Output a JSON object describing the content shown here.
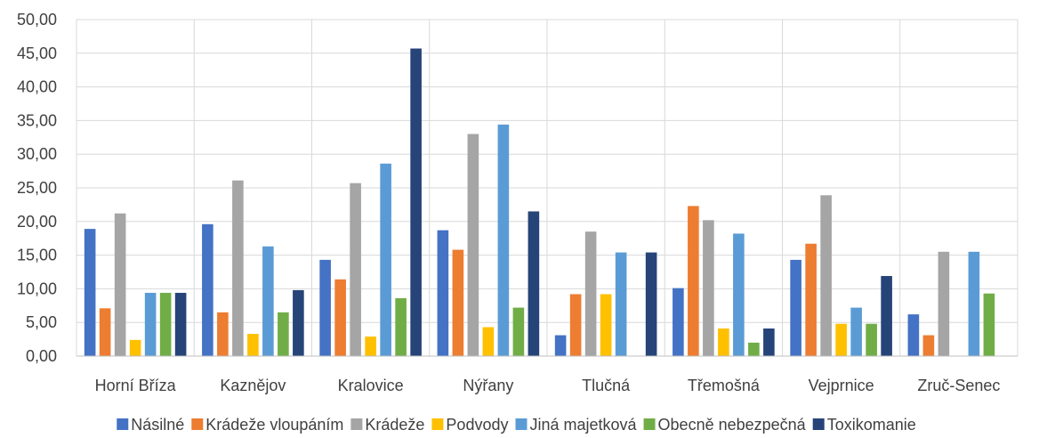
{
  "chart_data": {
    "type": "bar",
    "categories": [
      "Horní Bříza",
      "Kaznějov",
      "Kralovice",
      "Nýřany",
      "Tlučná",
      "Třemošná",
      "Vejprnice",
      "Zruč-Senec"
    ],
    "series": [
      {
        "name": "Násilné",
        "color": "#4472C4",
        "values": [
          18.9,
          19.6,
          14.3,
          18.7,
          3.1,
          10.1,
          14.3,
          6.2
        ]
      },
      {
        "name": "Krádeže vloupáním",
        "color": "#ED7D31",
        "values": [
          7.1,
          6.5,
          11.4,
          15.8,
          9.2,
          22.3,
          16.7,
          3.1
        ]
      },
      {
        "name": "Krádeže",
        "color": "#A5A5A5",
        "values": [
          21.2,
          26.1,
          25.7,
          33.0,
          18.5,
          20.2,
          23.9,
          15.5
        ]
      },
      {
        "name": "Podvody",
        "color": "#FFC000",
        "values": [
          2.4,
          3.3,
          2.9,
          4.3,
          9.2,
          4.1,
          4.8,
          0
        ]
      },
      {
        "name": "Jiná majetková",
        "color": "#5B9BD5",
        "values": [
          9.4,
          16.3,
          28.6,
          34.4,
          15.4,
          18.2,
          7.2,
          15.5
        ]
      },
      {
        "name": "Obecně nebezpečná",
        "color": "#70AD47",
        "values": [
          9.4,
          6.5,
          8.6,
          7.2,
          0,
          2.0,
          4.8,
          9.3
        ]
      },
      {
        "name": "Toxikomanie",
        "color": "#264478",
        "values": [
          9.4,
          9.8,
          45.7,
          21.5,
          15.4,
          4.1,
          11.9,
          0
        ]
      }
    ],
    "yticks": [
      "0,00",
      "5,00",
      "10,00",
      "15,00",
      "20,00",
      "25,00",
      "30,00",
      "35,00",
      "40,00",
      "45,00",
      "50,00"
    ],
    "ylim": [
      0,
      50
    ],
    "grid": "horizontal and category separators",
    "legend_position": "bottom",
    "title": "",
    "xlabel": "",
    "ylabel": ""
  }
}
